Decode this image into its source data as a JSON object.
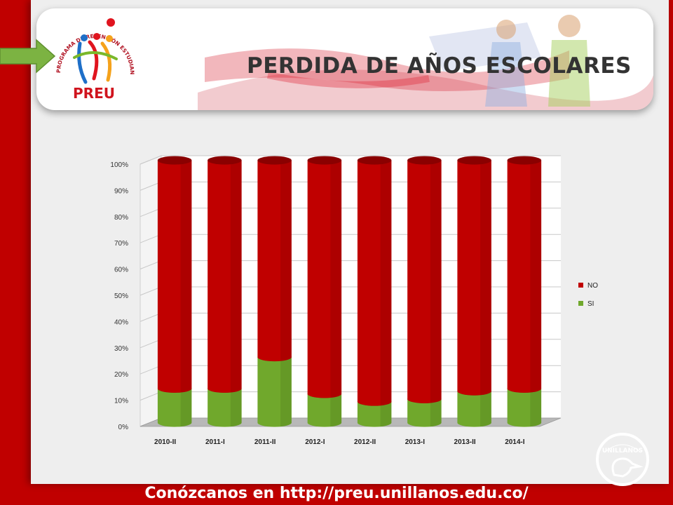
{
  "slide": {
    "title": "PERDIDA DE AÑOS ESCOLARES",
    "footer": "Conózcanos en http://preu.unillanos.edu.co/",
    "logo": {
      "arc_text": "PROGRAMA DE RETENCIÓN ESTUDIANTIL UNILLANISTA",
      "acronym": "PREU"
    },
    "univ_logo": {
      "text": "UNILLANOS"
    }
  },
  "colors": {
    "background": "#c00000",
    "no": "#c00000",
    "si": "#70a82c"
  },
  "chart_data": {
    "type": "bar",
    "stacked": true,
    "categories": [
      "2010-II",
      "2011-I",
      "2011-II",
      "2012-I",
      "2012-II",
      "2013-I",
      "2013-II",
      "2014-I"
    ],
    "series": [
      {
        "name": "SI",
        "values": [
          13,
          13,
          25,
          11,
          8,
          9,
          12,
          13
        ]
      },
      {
        "name": "NO",
        "values": [
          87,
          87,
          75,
          89,
          92,
          91,
          88,
          87
        ]
      }
    ],
    "y_ticks": [
      "0%",
      "10%",
      "20%",
      "30%",
      "40%",
      "50%",
      "60%",
      "70%",
      "80%",
      "90%",
      "100%"
    ],
    "ylim": [
      0,
      100
    ],
    "grid": true,
    "legend_position": "right"
  }
}
